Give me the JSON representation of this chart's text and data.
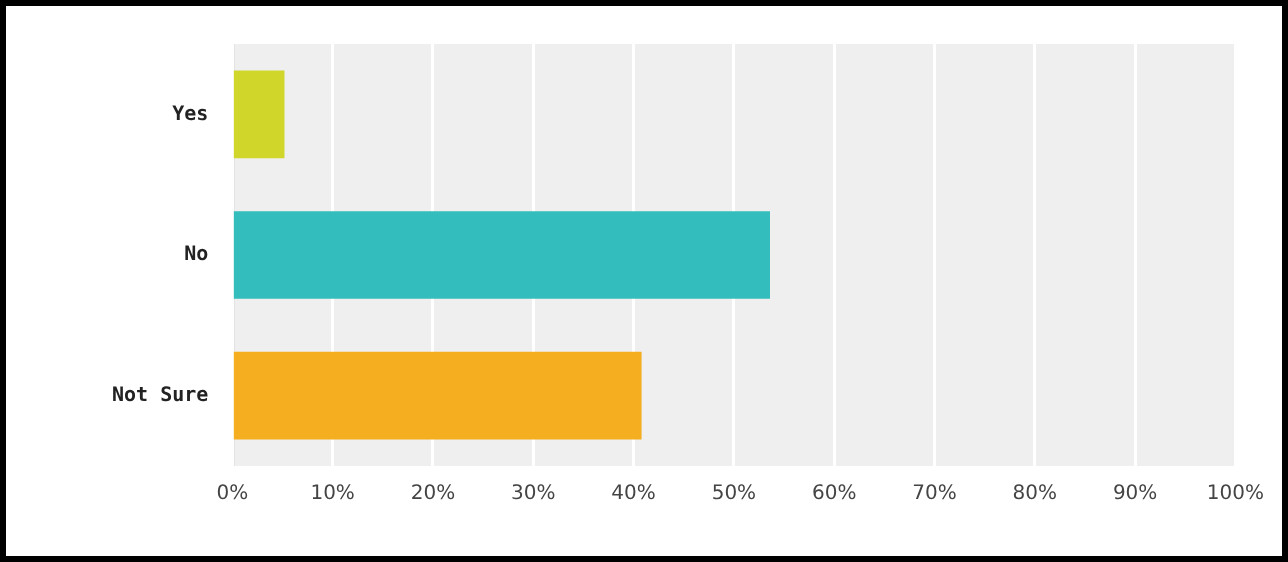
{
  "chart_data": {
    "type": "bar",
    "orientation": "horizontal",
    "categories": [
      "Yes",
      "No",
      "Not Sure"
    ],
    "values": [
      5.2,
      53.6,
      40.8
    ],
    "colors": [
      "#d0d62a",
      "#33bdbd",
      "#f4ae1f"
    ],
    "xlim": [
      0,
      100
    ],
    "xticks": [
      {
        "value": 0,
        "label": "0%"
      },
      {
        "value": 10,
        "label": "10%"
      },
      {
        "value": 20,
        "label": "20%"
      },
      {
        "value": 30,
        "label": "30%"
      },
      {
        "value": 40,
        "label": "40%"
      },
      {
        "value": 50,
        "label": "50%"
      },
      {
        "value": 60,
        "label": "60%"
      },
      {
        "value": 70,
        "label": "70%"
      },
      {
        "value": 80,
        "label": "80%"
      },
      {
        "value": 90,
        "label": "90%"
      },
      {
        "value": 100,
        "label": "100%"
      }
    ],
    "grid": "x",
    "legend": false
  }
}
